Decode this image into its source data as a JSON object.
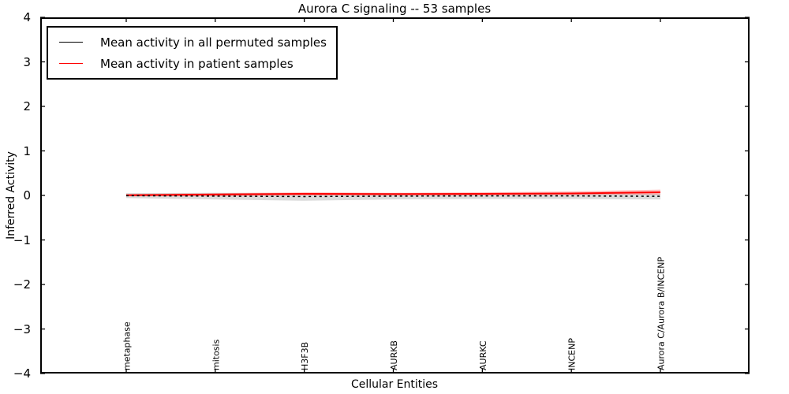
{
  "figure": {
    "kind": "matplotlib-style line chart"
  },
  "chart_data": {
    "type": "line",
    "title": "Aurora C signaling -- 53 samples",
    "xlabel": "Cellular Entities",
    "ylabel": "Inferred Activity",
    "ylim": [
      -4,
      4
    ],
    "yticks": [
      4,
      3,
      2,
      1,
      0,
      -1,
      -2,
      -3,
      -4
    ],
    "grid": false,
    "legend_position": "upper left",
    "frame_color": "#000000",
    "categories": [
      "metaphase",
      "mitosis",
      "H3F3B",
      "AURKB",
      "AURKC",
      "INCENP",
      "Aurora C/Aurora B/INCENP"
    ],
    "series": [
      {
        "name": "Mean activity in all permuted samples",
        "color": "#000000",
        "linestyle": "dotted",
        "values": [
          -0.005,
          -0.015,
          -0.025,
          -0.015,
          -0.01,
          -0.01,
          -0.02
        ],
        "band": {
          "low": [
            -0.06,
            -0.09,
            -0.12,
            -0.09,
            -0.08,
            -0.08,
            -0.09
          ],
          "high": [
            0.05,
            0.06,
            0.05,
            0.05,
            0.05,
            0.04,
            0.04
          ],
          "color": "#999999",
          "opacity": 0.35
        }
      },
      {
        "name": "Mean activity in patient samples",
        "color": "#ff0000",
        "linestyle": "solid",
        "values": [
          0.005,
          0.02,
          0.035,
          0.03,
          0.035,
          0.045,
          0.07
        ],
        "band": {
          "low": [
            -0.02,
            -0.01,
            0.0,
            0.0,
            0.0,
            0.01,
            0.02
          ],
          "high": [
            0.03,
            0.05,
            0.07,
            0.06,
            0.07,
            0.09,
            0.13
          ],
          "color": "#ff0000",
          "opacity": 0.25
        }
      }
    ]
  }
}
